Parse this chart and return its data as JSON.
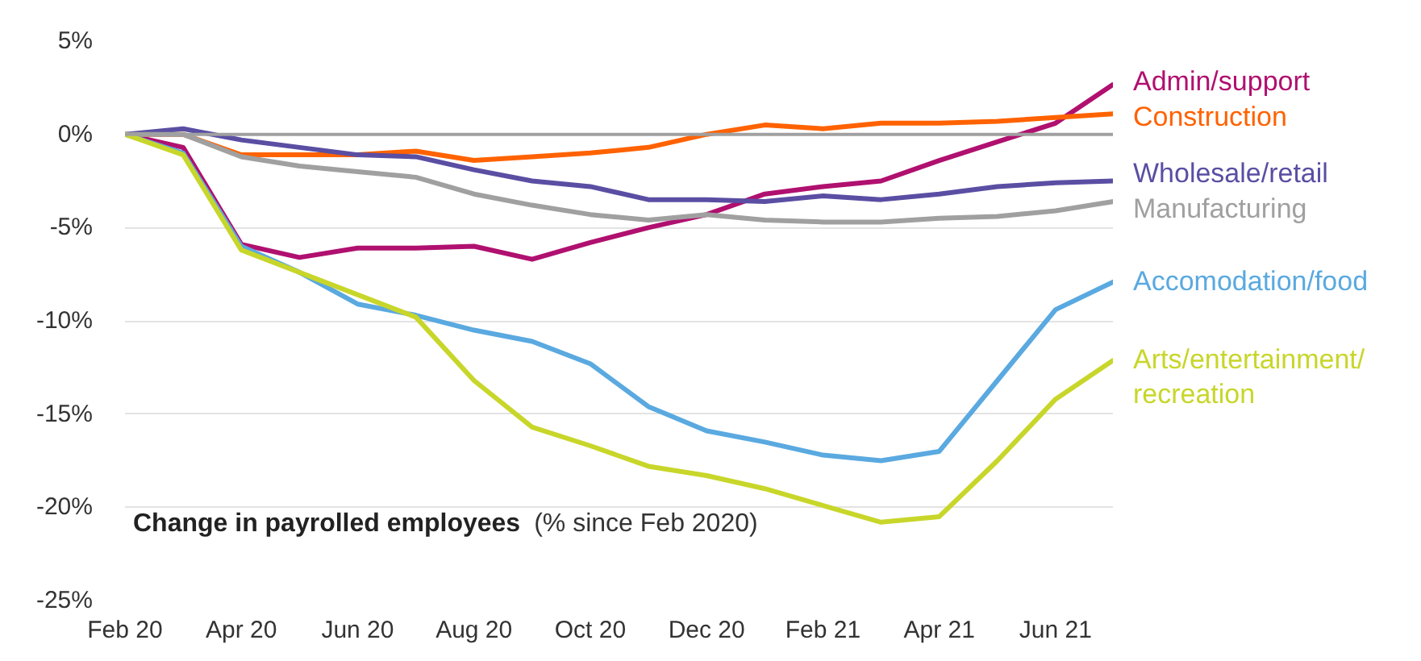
{
  "chart_data": {
    "type": "line",
    "title": "Change in payrolled employees",
    "subtitle": "(% since Feb 2020)",
    "categories": [
      "Feb 20",
      null,
      "Apr 20",
      null,
      "Jun 20",
      null,
      "Aug 20",
      null,
      "Oct 20",
      null,
      "Dec 20",
      null,
      "Feb 21",
      null,
      "Apr 21",
      null,
      "Jun 21",
      null
    ],
    "series": [
      {
        "name": "Admin/support",
        "color": "#b0106f",
        "values": [
          0,
          -0.7,
          -5.9,
          -6.6,
          -6.1,
          -6.1,
          -6.0,
          -6.7,
          -5.8,
          -5.0,
          -4.3,
          -3.2,
          -2.8,
          -2.5,
          -1.4,
          -0.4,
          0.6,
          2.7
        ]
      },
      {
        "name": "Construction",
        "color": "#ff6200",
        "values": [
          0,
          0,
          -1.1,
          -1.1,
          -1.1,
          -0.9,
          -1.4,
          -1.2,
          -1.0,
          -0.7,
          0.0,
          0.5,
          0.3,
          0.6,
          0.6,
          0.7,
          0.9,
          1.1
        ]
      },
      {
        "name": "Wholesale/retail",
        "color": "#5a4ea3",
        "values": [
          0,
          0.3,
          -0.3,
          -0.7,
          -1.1,
          -1.2,
          -1.9,
          -2.5,
          -2.8,
          -3.5,
          -3.5,
          -3.6,
          -3.3,
          -3.5,
          -3.2,
          -2.8,
          -2.6,
          -2.5
        ]
      },
      {
        "name": "Manufacturing",
        "color": "#a0a0a0",
        "values": [
          0,
          0,
          -1.2,
          -1.7,
          -2.0,
          -2.3,
          -3.2,
          -3.8,
          -4.3,
          -4.6,
          -4.3,
          -4.6,
          -4.7,
          -4.7,
          -4.5,
          -4.4,
          -4.1,
          -3.6
        ]
      },
      {
        "name": "Accomodation/food",
        "color": "#5aa9e0",
        "values": [
          0,
          -1.0,
          -6.0,
          -7.4,
          -9.1,
          -9.7,
          -10.5,
          -11.1,
          -12.3,
          -14.6,
          -15.9,
          -16.5,
          -17.2,
          -17.5,
          -17.0,
          -13.2,
          -9.4,
          -7.9
        ]
      },
      {
        "name": "Arts/entertainment/recreation",
        "color": "#c8d62a",
        "values": [
          0,
          -1.1,
          -6.2,
          -7.4,
          -8.6,
          -9.8,
          -13.2,
          -15.7,
          -16.7,
          -17.8,
          -18.3,
          -19.0,
          -19.9,
          -20.8,
          -20.5,
          -17.5,
          -14.2,
          -12.1
        ]
      }
    ],
    "ylim": [
      -25,
      5
    ],
    "yticks": [
      {
        "value": -25,
        "label": "-25%"
      },
      {
        "value": -20,
        "label": "-20%"
      },
      {
        "value": -15,
        "label": "-15%"
      },
      {
        "value": -10,
        "label": "-10%"
      },
      {
        "value": -5,
        "label": "-5%"
      },
      {
        "value": 0,
        "label": "0%"
      },
      {
        "value": 5,
        "label": "5%"
      }
    ],
    "grid": "y",
    "ref_lines": [
      {
        "axis": "y",
        "value": 0,
        "color": "#a0a0a0"
      }
    ],
    "line_style": "solid"
  }
}
